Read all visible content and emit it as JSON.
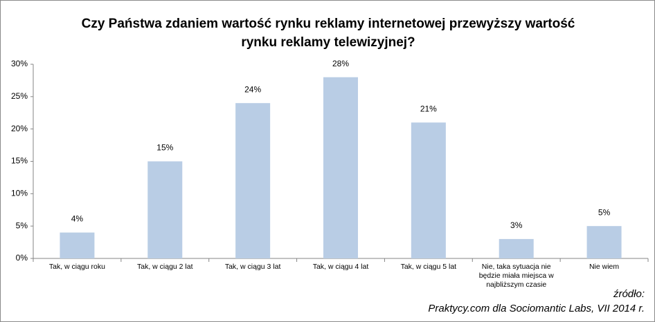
{
  "chart_data": {
    "type": "bar",
    "title": "Czy Państwa zdaniem wartość rynku reklamy internetowej przewyższy wartość rynku reklamy telewizyjnej?",
    "categories": [
      "Tak, w ciągu roku",
      "Tak, w ciągu 2 lat",
      "Tak, w ciągu 3 lat",
      "Tak, w ciągu 4 lat",
      "Tak, w ciągu 5 lat",
      "Nie, taka sytuacja nie będzie miała miejsca w najbliższym czasie",
      "Nie wiem"
    ],
    "values": [
      4,
      15,
      24,
      28,
      21,
      3,
      5
    ],
    "value_labels": [
      "4%",
      "15%",
      "24%",
      "28%",
      "21%",
      "3%",
      "5%"
    ],
    "color": "#b9cde5",
    "ylim": [
      0,
      30
    ],
    "yticks": [
      {
        "value": 0,
        "label": "0%"
      },
      {
        "value": 5,
        "label": "5%"
      },
      {
        "value": 10,
        "label": "10%"
      },
      {
        "value": 15,
        "label": "15%"
      },
      {
        "value": 20,
        "label": "20%"
      },
      {
        "value": 25,
        "label": "25%"
      },
      {
        "value": 30,
        "label": "30%"
      }
    ],
    "grid": false,
    "source_label": "źródło:",
    "source": "Praktycy.com dla Sociomantic Labs, VII 2014 r."
  }
}
